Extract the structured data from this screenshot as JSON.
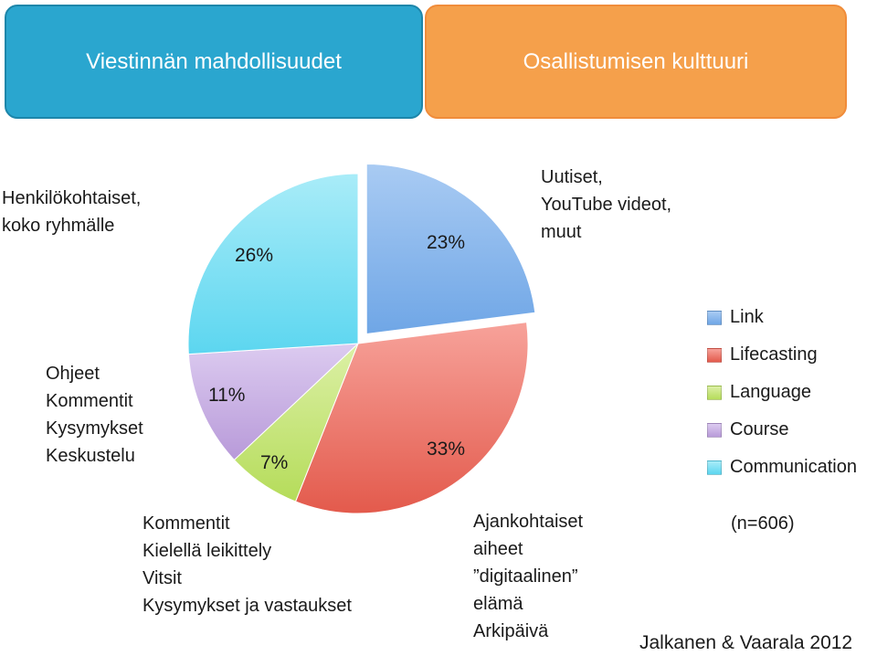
{
  "header": {
    "left_tab": "Viestinnän mahdollisuudet",
    "right_tab": "Osallistumisen kulttuuri"
  },
  "annotations": {
    "top_left": [
      "Henkilökohtaiset,",
      "koko ryhmälle"
    ],
    "top_right": [
      "Uutiset,",
      "YouTube videot,",
      "muut"
    ],
    "middle_left": [
      "Ohjeet",
      "Kommentit",
      "Kysymykset",
      "Keskustelu"
    ],
    "bottom_left": [
      "Kommentit",
      "Kielellä leikittely",
      "Vitsit",
      "Kysymykset ja vastaukset"
    ],
    "bottom_middle": [
      "Ajankohtaiset",
      "aiheet",
      "”digitaalinen”",
      "elämä",
      "Arkipäivä"
    ],
    "sample_size": "(n=606)",
    "credit": "Jalkanen & Vaarala 2012"
  },
  "colors": {
    "left_tab": "#2aa6cf",
    "right_tab": "#f5a04b"
  },
  "chart_data": {
    "type": "pie",
    "title": "",
    "start_angle_deg": 0,
    "slices": [
      {
        "name": "Link",
        "value": 23,
        "label": "23%",
        "color": "#6fa6e6",
        "color_light": "#a9cbf3",
        "exploded": true
      },
      {
        "name": "Lifecasting",
        "value": 33,
        "label": "33%",
        "color": "#e35a4c",
        "color_light": "#f7a29a",
        "exploded": false
      },
      {
        "name": "Language",
        "value": 7,
        "label": "7%",
        "color": "#b5dc5a",
        "color_light": "#dcf0a6",
        "exploded": false
      },
      {
        "name": "Course",
        "value": 11,
        "label": "11%",
        "color": "#b89ad9",
        "color_light": "#dccbf0",
        "exploded": false
      },
      {
        "name": "Communication",
        "value": 26,
        "label": "26%",
        "color": "#5cd6f0",
        "color_light": "#a9ecf8",
        "exploded": false
      }
    ],
    "legend": [
      "Link",
      "Lifecasting",
      "Language",
      "Course",
      "Communication"
    ],
    "legend_position": "right"
  }
}
